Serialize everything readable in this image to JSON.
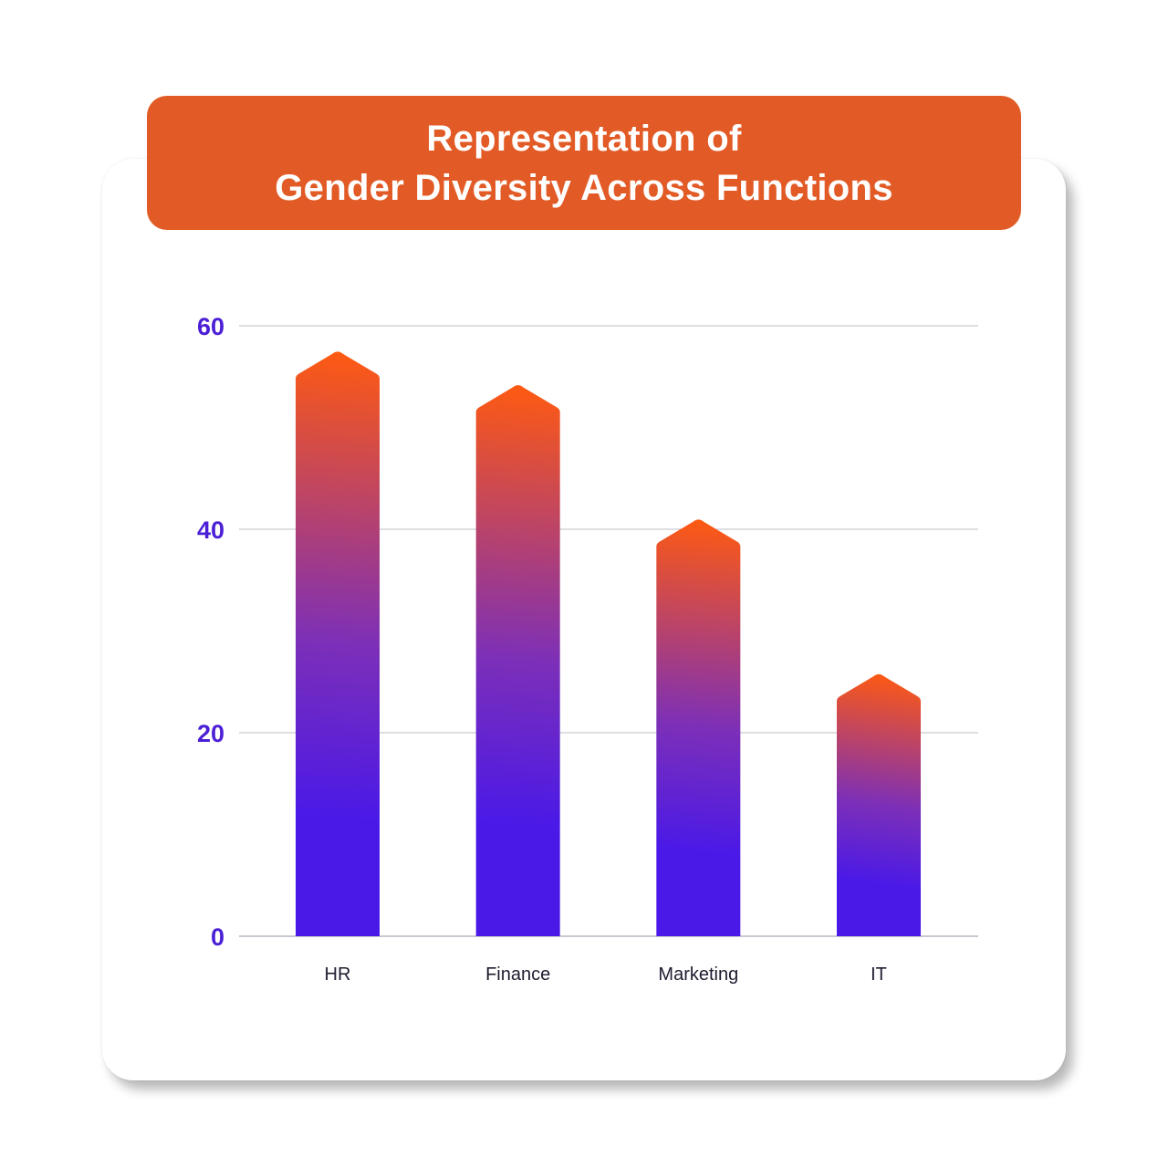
{
  "title": {
    "line1": "Representation of",
    "line2": "Gender Diversity Across Functions"
  },
  "colors": {
    "banner": "#e25b26",
    "bar_top": "#ff5a10",
    "bar_mid": "#7c2fb8",
    "bar_bottom": "#4a19e8",
    "tick_label": "#4b1fd6",
    "gridline": "#c9c9d2"
  },
  "chart_data": {
    "type": "bar",
    "title": "Representation of Gender Diversity Across Functions",
    "categories": [
      "HR",
      "Finance",
      "Marketing",
      "IT"
    ],
    "values": [
      57.5,
      54.2,
      41,
      25.8
    ],
    "yticks": [
      0,
      20,
      40,
      60
    ],
    "ylim": [
      0,
      60
    ],
    "xlabel": "",
    "ylabel": "",
    "grid": true
  }
}
